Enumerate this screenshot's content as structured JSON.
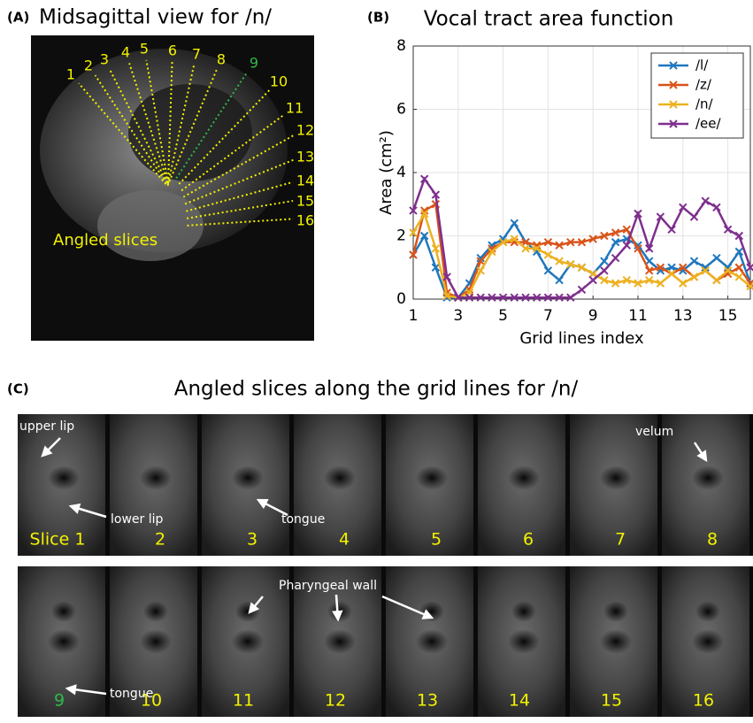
{
  "panel_a": {
    "tag": "(A)",
    "title": "Midsagittal view for /n/",
    "caption": "Angled slices",
    "grid_lines": [
      {
        "label": "1",
        "color": "#f2f200"
      },
      {
        "label": "2",
        "color": "#f2f200"
      },
      {
        "label": "3",
        "color": "#f2f200"
      },
      {
        "label": "4",
        "color": "#f2f200"
      },
      {
        "label": "5",
        "color": "#f2f200"
      },
      {
        "label": "6",
        "color": "#f2f200"
      },
      {
        "label": "7",
        "color": "#f2f200"
      },
      {
        "label": "8",
        "color": "#f2f200"
      },
      {
        "label": "9",
        "color": "#2fb84a"
      },
      {
        "label": "10",
        "color": "#f2f200"
      },
      {
        "label": "11",
        "color": "#f2f200"
      },
      {
        "label": "12",
        "color": "#f2f200"
      },
      {
        "label": "13",
        "color": "#f2f200"
      },
      {
        "label": "14",
        "color": "#f2f200"
      },
      {
        "label": "15",
        "color": "#f2f200"
      },
      {
        "label": "16",
        "color": "#f2f200"
      }
    ]
  },
  "chart_data": {
    "type": "line",
    "tag": "(B)",
    "title": "Vocal tract area function",
    "xlabel": "Grid lines index",
    "ylabel": "Area (cm²)",
    "x": [
      1,
      1.5,
      2,
      2.5,
      3,
      3.5,
      4,
      4.5,
      5,
      5.5,
      6,
      6.5,
      7,
      7.5,
      8,
      8.5,
      9,
      9.5,
      10,
      10.5,
      11,
      11.5,
      12,
      12.5,
      13,
      13.5,
      14,
      14.5,
      15,
      15.5,
      16
    ],
    "series": [
      {
        "name": "/l/",
        "color": "#1f77bd",
        "values": [
          1.4,
          2.0,
          1.0,
          0.05,
          0.05,
          0.5,
          1.3,
          1.7,
          1.9,
          2.4,
          1.8,
          1.5,
          0.9,
          0.6,
          1.1,
          1.0,
          0.8,
          1.2,
          1.8,
          1.9,
          1.7,
          1.2,
          0.9,
          1.0,
          0.9,
          1.2,
          1.0,
          1.3,
          1.0,
          1.5,
          0.5
        ]
      },
      {
        "name": "/z/",
        "color": "#d95319",
        "values": [
          1.4,
          2.8,
          3.0,
          0.2,
          0.05,
          0.3,
          1.2,
          1.6,
          1.8,
          1.8,
          1.8,
          1.7,
          1.8,
          1.7,
          1.8,
          1.8,
          1.9,
          2.0,
          2.1,
          2.2,
          1.6,
          0.9,
          1.0,
          0.8,
          1.0,
          0.7,
          0.9,
          0.6,
          0.8,
          1.0,
          0.5
        ]
      },
      {
        "name": "/n/",
        "color": "#edb120",
        "values": [
          2.1,
          2.7,
          1.6,
          0.1,
          0.05,
          0.2,
          0.9,
          1.5,
          1.8,
          1.9,
          1.6,
          1.6,
          1.4,
          1.2,
          1.1,
          1.0,
          0.8,
          0.6,
          0.5,
          0.6,
          0.5,
          0.6,
          0.5,
          0.8,
          0.5,
          0.7,
          0.9,
          0.6,
          0.9,
          0.7,
          0.4
        ]
      },
      {
        "name": "/ee/",
        "color": "#7e2f8e",
        "values": [
          2.8,
          3.8,
          3.3,
          0.7,
          0.05,
          0.05,
          0.05,
          0.05,
          0.05,
          0.05,
          0.05,
          0.05,
          0.05,
          0.05,
          0.05,
          0.3,
          0.6,
          0.9,
          1.3,
          1.7,
          2.7,
          1.6,
          2.6,
          2.2,
          2.9,
          2.6,
          3.1,
          2.9,
          2.2,
          2.0,
          1.0
        ]
      }
    ],
    "xlim": [
      1,
      16
    ],
    "xticks": [
      1,
      3,
      5,
      7,
      9,
      11,
      13,
      15
    ],
    "ylim": [
      0,
      8
    ],
    "yticks": [
      0,
      2,
      4,
      6,
      8
    ],
    "grid": true,
    "legend": "top-right"
  },
  "panel_c": {
    "tag": "(C)",
    "title": "Angled slices along the grid lines for /n/",
    "slices": [
      {
        "label": "Slice 1",
        "color": "#f2f200"
      },
      {
        "label": "2",
        "color": "#f2f200"
      },
      {
        "label": "3",
        "color": "#f2f200"
      },
      {
        "label": "4",
        "color": "#f2f200"
      },
      {
        "label": "5",
        "color": "#f2f200"
      },
      {
        "label": "6",
        "color": "#f2f200"
      },
      {
        "label": "7",
        "color": "#f2f200"
      },
      {
        "label": "8",
        "color": "#f2f200"
      },
      {
        "label": "9",
        "color": "#2fb84a"
      },
      {
        "label": "10",
        "color": "#f2f200"
      },
      {
        "label": "11",
        "color": "#f2f200"
      },
      {
        "label": "12",
        "color": "#f2f200"
      },
      {
        "label": "13",
        "color": "#f2f200"
      },
      {
        "label": "14",
        "color": "#f2f200"
      },
      {
        "label": "15",
        "color": "#f2f200"
      },
      {
        "label": "16",
        "color": "#f2f200"
      }
    ],
    "annotations": [
      "upper lip",
      "lower lip",
      "tongue",
      "velum",
      "tongue",
      "Pharyngeal wall"
    ]
  }
}
